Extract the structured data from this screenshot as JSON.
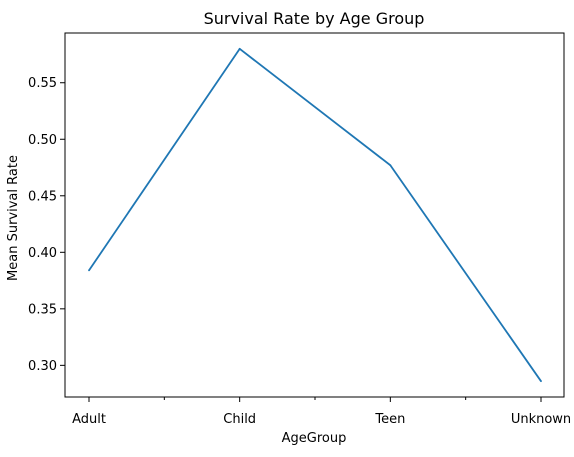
{
  "chart_data": {
    "type": "line",
    "title": "Survival Rate by Age Group",
    "xlabel": "AgeGroup",
    "ylabel": "Mean Survival Rate",
    "categories": [
      "Adult",
      "Child",
      "Teen",
      "Unknown"
    ],
    "series": [
      {
        "color": "#1f77b4",
        "values": [
          0.384,
          0.58,
          0.477,
          0.286
        ]
      }
    ],
    "ylim": [
      0.272,
      0.594
    ],
    "yticks": [
      0.3,
      0.35,
      0.4,
      0.45,
      0.5,
      0.55
    ],
    "ytick_labels": [
      "0.30",
      "0.35",
      "0.40",
      "0.45",
      "0.50",
      "0.55"
    ],
    "minor_xticks": [
      0.5,
      1.5,
      2.5
    ],
    "grid": false,
    "legend": "none"
  }
}
